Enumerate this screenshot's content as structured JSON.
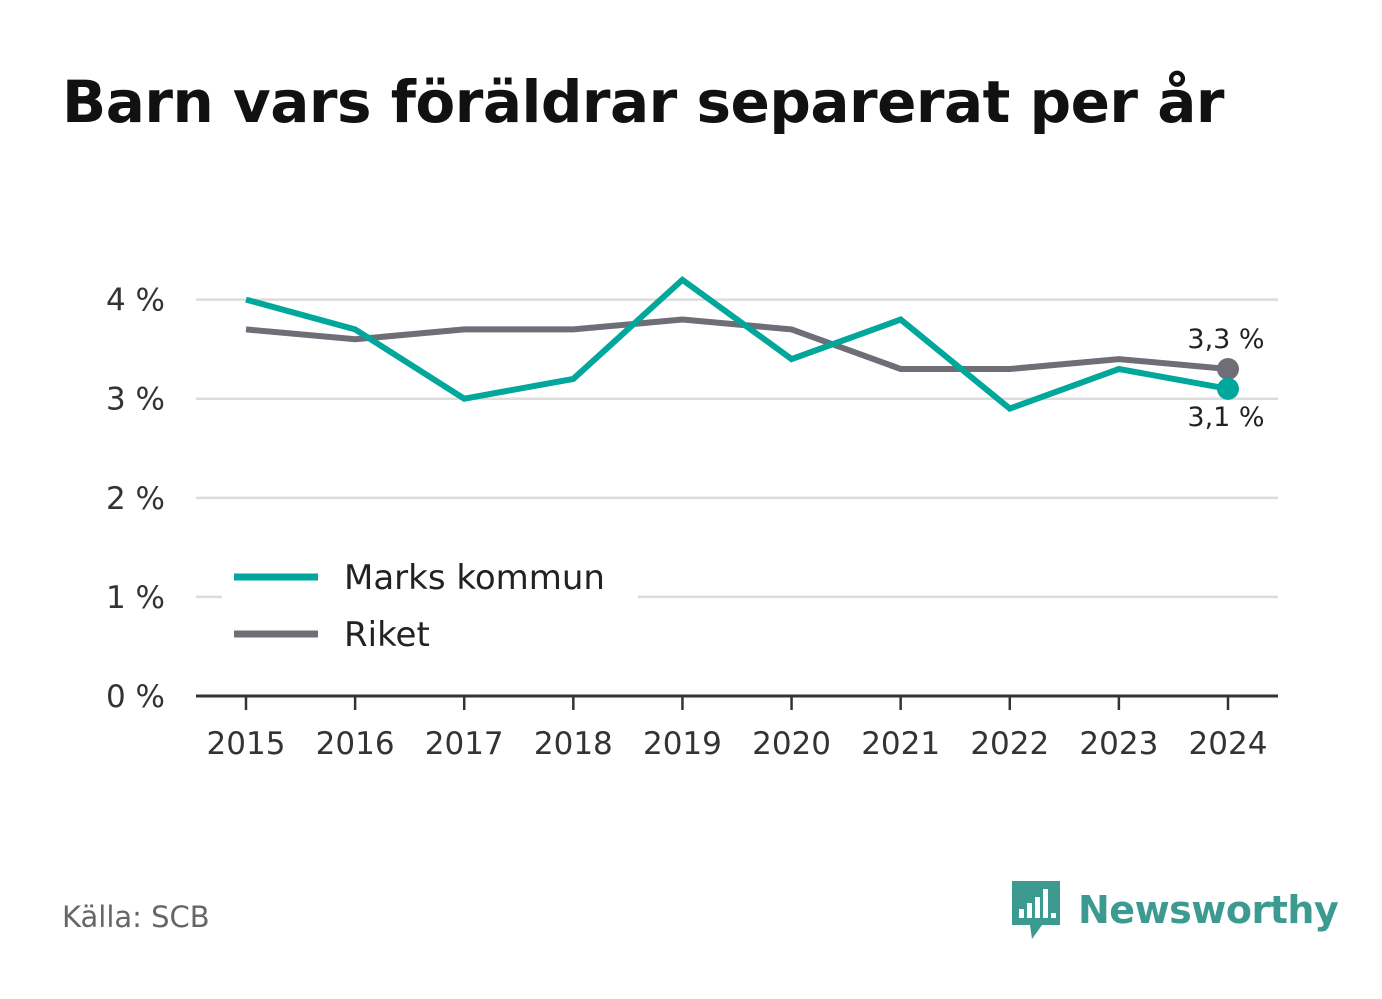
{
  "chart_data": {
    "type": "line",
    "title": "Barn vars föräldrar separerat per år",
    "x": [
      "2015",
      "2016",
      "2017",
      "2018",
      "2019",
      "2020",
      "2021",
      "2022",
      "2023",
      "2024"
    ],
    "y_ticks": [
      0,
      1,
      2,
      3,
      4
    ],
    "y_tick_labels": [
      "0 %",
      "1 %",
      "2 %",
      "3 %",
      "4 %"
    ],
    "ylim": [
      0,
      4.4
    ],
    "grid": true,
    "legend_position": "bottom-left",
    "series": [
      {
        "name": "Marks kommun",
        "color": "#00a79a",
        "values": [
          4.0,
          3.7,
          3.0,
          3.2,
          4.2,
          3.4,
          3.8,
          2.9,
          3.3,
          3.1
        ],
        "end_label": "3,1 %"
      },
      {
        "name": "Riket",
        "color": "#6f6e77",
        "values": [
          3.7,
          3.6,
          3.7,
          3.7,
          3.8,
          3.7,
          3.3,
          3.3,
          3.4,
          3.3
        ],
        "end_label": "3,3 %"
      }
    ]
  },
  "footer": {
    "source": "Källa: SCB",
    "brand": "Newsworthy",
    "brand_color": "#3d9a91",
    "brand_icon": "newsworthy-logo-icon"
  }
}
